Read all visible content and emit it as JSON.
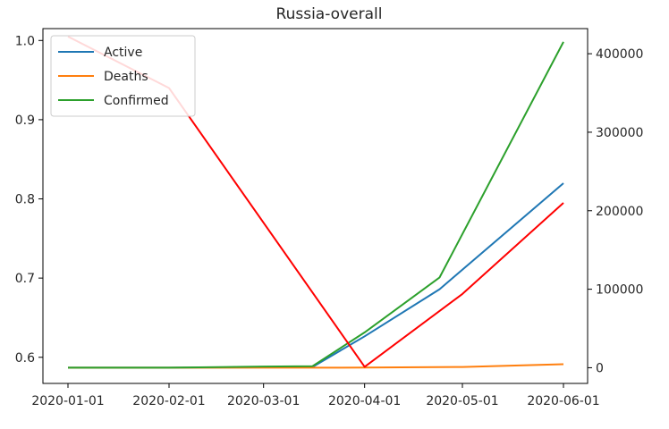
{
  "chart_data": {
    "type": "line",
    "title": "Russia-overall",
    "x_ticks": [
      "2020-01-01",
      "2020-02-01",
      "2020-03-01",
      "2020-04-01",
      "2020-05-01",
      "2020-06-01"
    ],
    "y_left": {
      "ticks": [
        "0.6",
        "0.7",
        "0.8",
        "0.9",
        "1.0"
      ],
      "range": [
        0.567,
        1.015
      ]
    },
    "y_right": {
      "ticks": [
        "0",
        "100000",
        "200000",
        "300000",
        "400000"
      ],
      "range": [
        -20000,
        432000
      ]
    },
    "legend": {
      "placement": "top-left",
      "entries": [
        "Active",
        "Deaths",
        "Confirmed"
      ]
    },
    "grid": false,
    "series": [
      {
        "name": "Active",
        "color": "#1f77b4",
        "axis": "right",
        "x": [
          "2020-01-01",
          "2020-02-01",
          "2020-03-01",
          "2020-03-16",
          "2020-04-01",
          "2020-04-24",
          "2020-06-01"
        ],
        "y": [
          0,
          0,
          500,
          1000,
          40000,
          100000,
          235000
        ]
      },
      {
        "name": "Deaths",
        "color": "#ff7f0e",
        "axis": "right",
        "x": [
          "2020-01-01",
          "2020-02-01",
          "2020-03-01",
          "2020-03-16",
          "2020-04-01",
          "2020-05-01",
          "2020-06-01"
        ],
        "y": [
          0,
          0,
          0,
          0,
          100,
          1000,
          4500
        ]
      },
      {
        "name": "Confirmed",
        "color": "#2ca02c",
        "axis": "right",
        "x": [
          "2020-01-01",
          "2020-02-01",
          "2020-03-01",
          "2020-03-16",
          "2020-04-01",
          "2020-04-24",
          "2020-06-01"
        ],
        "y": [
          0,
          0,
          1500,
          2000,
          45000,
          115000,
          415000
        ]
      },
      {
        "color": "#ff0000",
        "axis": "left",
        "x": [
          "2020-01-01",
          "2020-02-01",
          "2020-04-01",
          "2020-05-01",
          "2020-06-01"
        ],
        "y": [
          1.005,
          0.94,
          0.588,
          0.68,
          0.795
        ]
      }
    ]
  }
}
